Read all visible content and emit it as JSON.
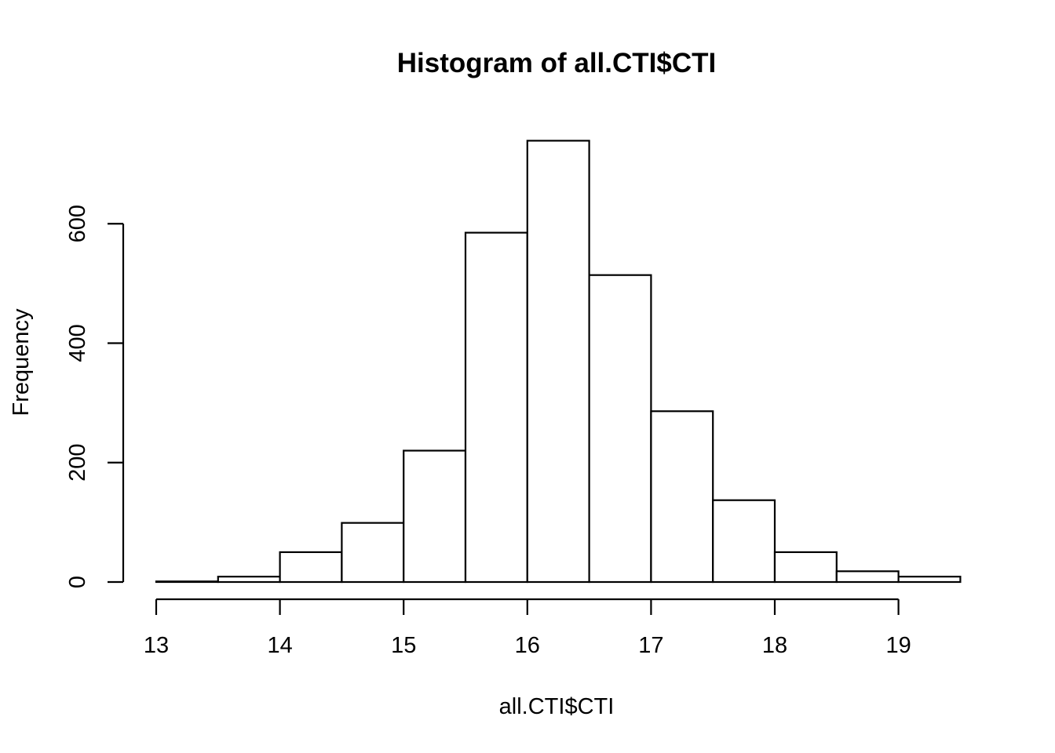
{
  "chart_data": {
    "type": "bar",
    "title": "Histogram of all.CTI$CTI",
    "xlabel": "all.CTI$CTI",
    "ylabel": "Frequency",
    "bin_width": 0.5,
    "bin_starts": [
      13,
      13.5,
      14,
      14.5,
      15,
      15.5,
      16,
      16.5,
      17,
      17.5,
      18,
      18.5,
      19
    ],
    "values": [
      1,
      9,
      50,
      99,
      220,
      585,
      739,
      514,
      286,
      137,
      50,
      18,
      9
    ],
    "x_ticks": [
      13,
      14,
      15,
      16,
      17,
      18,
      19
    ],
    "y_ticks": [
      0,
      200,
      400,
      600
    ],
    "xlim": [
      13,
      19.5
    ],
    "ylim": [
      0,
      739
    ],
    "grid": false,
    "legend": "none",
    "bar_fill": "#ffffff",
    "bar_stroke": "#000000"
  }
}
